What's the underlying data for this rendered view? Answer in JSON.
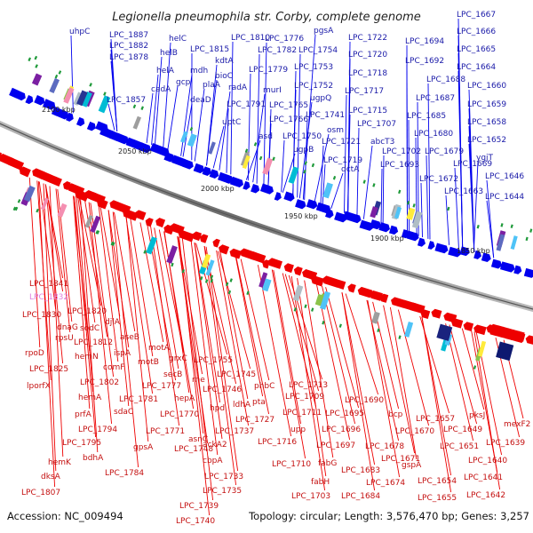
{
  "title": "Legionella pneumophila str. Corby, complete genome",
  "footer": {
    "accession": "Accession: NC_009494",
    "info": "Topology: circular; Length: 3,576,470 bp; Genes: 3,257"
  },
  "colors": {
    "forward": "#0000ee",
    "reverse": "#ee0000",
    "backbone": "#808080",
    "top_label": "#1a1aa8",
    "bottom_label": "#c41010",
    "highlight_label": "#e080e0",
    "feature_green": "#1f9a3a"
  },
  "scale_labels": [
    "2100 kbp",
    "2050 kbp",
    "2000 kbp",
    "1950 kbp",
    "1900 kbp",
    "1850 kbp"
  ],
  "top_genes": [
    "uhpC",
    "LPC_1887",
    "LPC_1882",
    "LPC_1878",
    "helC",
    "LPC_1815",
    "helB",
    "kdtA",
    "LPC_1810",
    "LPC_1776",
    "LPC_1782",
    "pgsA",
    "LPC_1754",
    "LPC_1722",
    "LPC_1694",
    "LPC_1667",
    "LPC_1666",
    "LPC_1665",
    "LPC_1720",
    "LPC_1692",
    "LPC_1664",
    "helA",
    "mdh",
    "bioC",
    "LPC_1779",
    "LPC_1753",
    "LPC_1718",
    "LPC_1688",
    "cadA",
    "gcp",
    "plaA",
    "radA",
    "murI",
    "LPC_1752",
    "LPC_1717",
    "LPC_1660",
    "LPC_1857",
    "deaD",
    "LPC_1791",
    "LPC_1765",
    "ugpQ",
    "LPC_1687",
    "LPC_1659",
    "uptC",
    "LPC_1766",
    "LPC_1741",
    "LPC_1715",
    "LPC_1685",
    "LPC_1658",
    "asd",
    "LPC_1750",
    "LPC_1707",
    "LPC_1680",
    "LPC_1652",
    "osm",
    "LPC_1721",
    "LPC_1719",
    "ugpB",
    "abcT3",
    "LPC_1702",
    "LPC_1679",
    "ygjT",
    "dctA",
    "LPC_1693",
    "LPC_1669",
    "LPC_1646",
    "LPC_1672",
    "LPC_1663",
    "LPC_1644"
  ],
  "bottom_genes": [
    "LPC_1841",
    "LPC_1832",
    "LPC_1820",
    "LPC_1830",
    "sodC",
    "djlA",
    "dnaG",
    "rpsU",
    "LPC_1812",
    "aseB",
    "rpoD",
    "hemN",
    "ispA",
    "motA",
    "LPC_1825",
    "comF",
    "motB",
    "grxC",
    "LPC_1755",
    "lporfX",
    "LPC_1802",
    "secB",
    "rne",
    "LPC_1745",
    "phbC",
    "LPC_1713",
    "hemA",
    "LPC_1781",
    "LPC_1777",
    "hepA",
    "LPC_1746",
    "pta",
    "LPC_1709",
    "LPC_1690",
    "sdaC",
    "ldhA",
    "LPC_1711",
    "LPC_1695",
    "bcp",
    "LPC_1657",
    "pksJ",
    "prfA",
    "LPC_1770",
    "hpd",
    "LPC_1727",
    "upp",
    "LPC_1696",
    "LPC_1670",
    "LPC_1649",
    "mexF2",
    "LPC_1794",
    "LPC_1771",
    "asnC",
    "LPC_1737",
    "LPC_1716",
    "LPC_1697",
    "LPC_1678",
    "LPC_1651",
    "LPC_1639",
    "LPC_1795",
    "gpsA",
    "ackA2",
    "LPC_1748",
    "LPC_1671",
    "hemK",
    "bdhA",
    "LPC_1784",
    "cbpA",
    "LPC_1710",
    "fabG",
    "LPC_1683",
    "gspA",
    "LPC_1640",
    "dksA",
    "LPC_1733",
    "fabH",
    "LPC_1674",
    "LPC_1654",
    "LPC_1641",
    "LPC_1735",
    "LPC_1703",
    "LPC_1684",
    "LPC_1655",
    "LPC_1642",
    "LPC_1807",
    "LPC_1739",
    "LPC_1740"
  ]
}
